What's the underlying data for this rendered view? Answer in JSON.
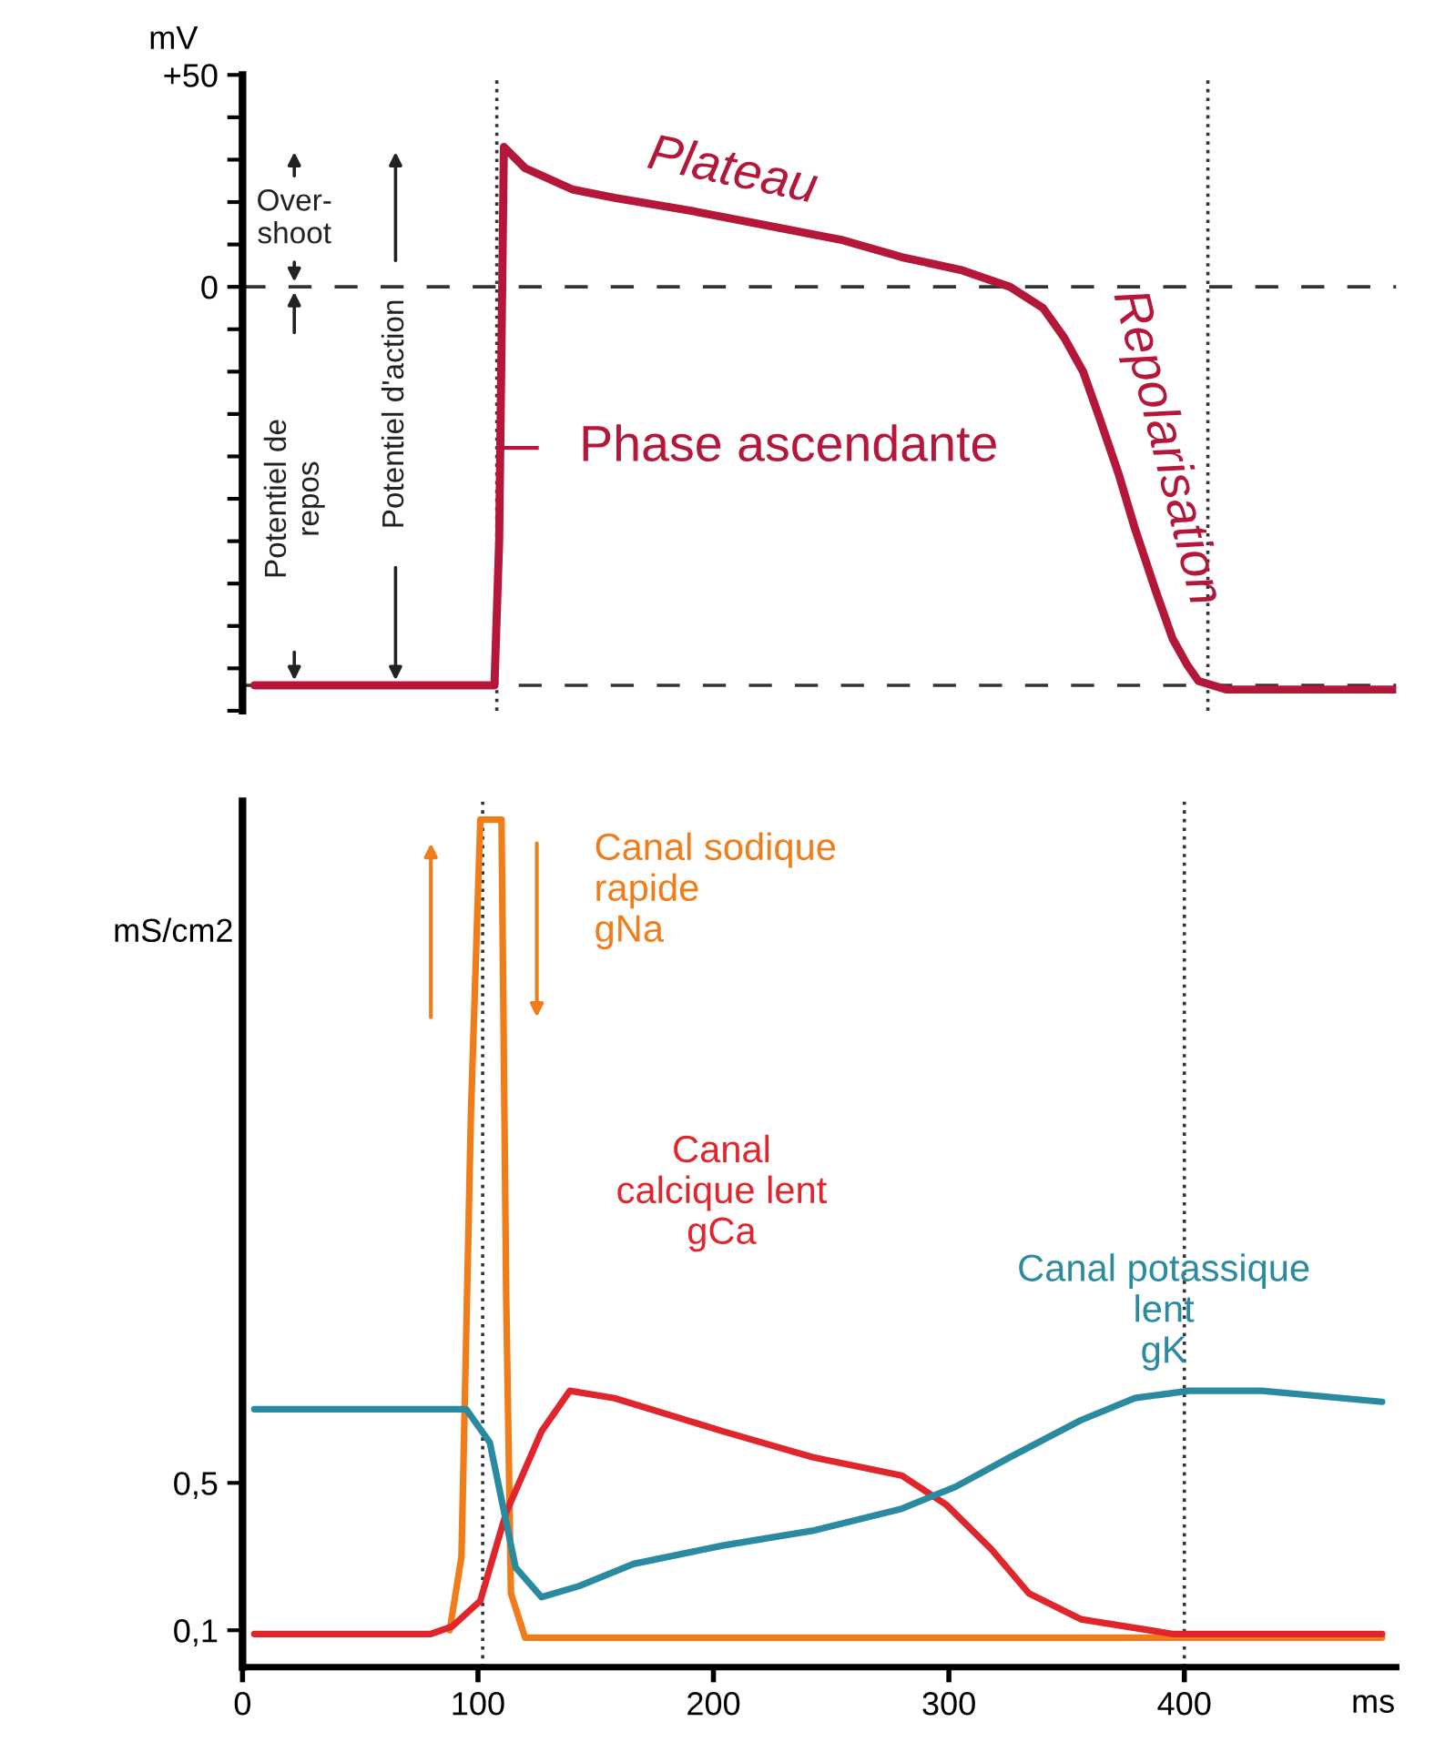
{
  "chart_data": [
    {
      "type": "line",
      "ylabel": "mV",
      "xlim": [
        0,
        490
      ],
      "ylim": [
        -100,
        50
      ],
      "tick_labels": "y",
      "grid": false,
      "yticks": [
        {
          "value": -100,
          "label": null
        },
        {
          "value": -90,
          "label": null
        },
        {
          "value": -80,
          "label": null
        },
        {
          "value": -70,
          "label": null
        },
        {
          "value": -60,
          "label": null
        },
        {
          "value": -50,
          "label": null
        },
        {
          "value": -40,
          "label": null
        },
        {
          "value": -30,
          "label": null
        },
        {
          "value": -20,
          "label": null
        },
        {
          "value": -10,
          "label": null
        },
        0,
        {
          "value": 10,
          "label": null
        },
        {
          "value": 20,
          "label": null
        },
        {
          "value": 30,
          "label": null
        },
        {
          "value": 40,
          "label": null
        },
        {
          "value": 50,
          "label": "+50"
        }
      ],
      "series": [
        {
          "color": "#b5173a",
          "x": [
            5,
            60,
            107,
            109,
            111,
            120,
            140,
            158,
            190,
            227,
            255,
            280,
            305,
            326,
            340,
            349,
            357,
            364,
            372,
            379,
            388,
            395,
            401,
            406,
            412,
            418,
            440,
            470,
            490
          ],
          "values": [
            -94,
            -94,
            -94,
            -60,
            33,
            28,
            23,
            21,
            18,
            14,
            11,
            7,
            4,
            0,
            -5,
            -12,
            -20,
            -31,
            -44,
            -57,
            -72,
            -83,
            -89,
            -93,
            -94,
            -95,
            -95,
            -95,
            -95
          ]
        }
      ],
      "ref_lines": [
        {
          "axis": "y",
          "value": 0,
          "line_style": "dashed"
        },
        {
          "axis": "y",
          "value": -94,
          "line_style": "dashed"
        },
        {
          "axis": "x",
          "value": 108,
          "line_style": "dotted"
        },
        {
          "axis": "x",
          "value": 410,
          "line_style": "dotted"
        }
      ],
      "annotations": [
        "Plateau",
        "Repolarisation",
        "Phase ascendante",
        "Over-\nshoot",
        "Potentiel de\nrepos",
        "Potentiel d'action"
      ]
    },
    {
      "type": "line",
      "ylabel": "mS/cm2",
      "xlabel": "ms",
      "xlim": [
        0,
        490
      ],
      "ylim": [
        0,
        2.35
      ],
      "grid": false,
      "xticks": [
        0,
        100,
        200,
        300,
        400
      ],
      "yticks": [
        {
          "value": 0.1,
          "label": "0,1"
        },
        {
          "value": 0.5,
          "label": "0,5"
        }
      ],
      "series": [
        {
          "name": "Canal sodique\nrapide\ngNa",
          "color": "#f07d1a",
          "x": [
            88,
            93,
            97,
            101,
            110,
            112,
            114,
            120,
            200,
            300,
            400,
            484
          ],
          "values": [
            0.1,
            0.3,
            1.5,
            2.3,
            2.3,
            1.0,
            0.2,
            0.08,
            0.08,
            0.08,
            0.08,
            0.08
          ]
        },
        {
          "name": "Canal\ncalcique lent\ngCa",
          "color": "#e0262c",
          "x": [
            5,
            50,
            80,
            89,
            101,
            112,
            127,
            139,
            158,
            204,
            242,
            280,
            299,
            318,
            334,
            356,
            395,
            484
          ],
          "values": [
            0.09,
            0.09,
            0.09,
            0.11,
            0.18,
            0.42,
            0.64,
            0.75,
            0.73,
            0.64,
            0.57,
            0.52,
            0.44,
            0.32,
            0.2,
            0.13,
            0.09,
            0.09
          ]
        },
        {
          "name": "Canal potassique\nlent\ngK",
          "color": "#2a8aa0",
          "x": [
            5,
            50,
            95,
            105,
            116,
            127,
            143,
            166,
            204,
            242,
            280,
            303,
            326,
            356,
            379,
            402,
            433,
            484
          ],
          "values": [
            0.7,
            0.7,
            0.7,
            0.61,
            0.27,
            0.19,
            0.22,
            0.28,
            0.33,
            0.37,
            0.43,
            0.49,
            0.57,
            0.67,
            0.73,
            0.75,
            0.75,
            0.72
          ]
        }
      ],
      "ref_lines": [
        {
          "axis": "x",
          "value": 102,
          "line_style": "dotted"
        },
        {
          "axis": "x",
          "value": 400,
          "line_style": "dotted"
        }
      ]
    }
  ]
}
